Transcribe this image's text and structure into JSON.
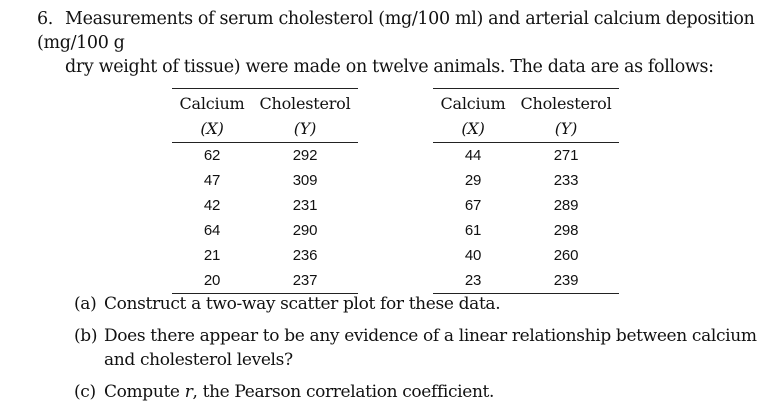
{
  "problem": {
    "number": "6.",
    "intro_line1": "Measurements of serum cholesterol (mg/100 ml) and arterial calcium deposition (mg/100 g",
    "intro_line2": "dry weight of tissue) were made on twelve animals. The data are as follows:"
  },
  "table": {
    "col_x_label": "Calcium",
    "col_y_label": "Cholesterol",
    "col_x_symbol": "(X)",
    "col_y_symbol": "(Y)",
    "left_rows": [
      {
        "x": "62",
        "y": "292"
      },
      {
        "x": "47",
        "y": "309"
      },
      {
        "x": "42",
        "y": "231"
      },
      {
        "x": "64",
        "y": "290"
      },
      {
        "x": "21",
        "y": "236"
      },
      {
        "x": "20",
        "y": "237"
      }
    ],
    "right_rows": [
      {
        "x": "44",
        "y": "271"
      },
      {
        "x": "29",
        "y": "233"
      },
      {
        "x": "67",
        "y": "289"
      },
      {
        "x": "61",
        "y": "298"
      },
      {
        "x": "40",
        "y": "260"
      },
      {
        "x": "23",
        "y": "239"
      }
    ]
  },
  "questions": [
    {
      "label": "(a)",
      "text": "Construct a two-way scatter plot for these data."
    },
    {
      "label": "(b)",
      "text": "Does there appear to be any evidence of a linear relationship between calcium and cholesterol levels?"
    },
    {
      "label": "(c)",
      "text_before": "Compute ",
      "symbol": "r",
      "text_after": ", the Pearson correlation coefficient."
    }
  ]
}
